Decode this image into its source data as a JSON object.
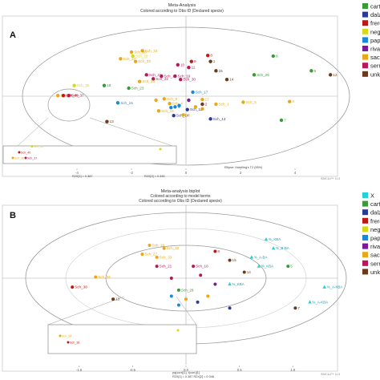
{
  "panel_a": {
    "letter": "A",
    "title": "Meta-Analysis",
    "subtitle": "Colored according to Obs ID (Declared specie)",
    "x_axis_text": "R2X[1] = 0.387",
    "y_axis_text": "R2X[2] = 0.346",
    "ellipse_note": "Ellipse: Hotelling's T2 (95%)",
    "watermark": "SIMCA-P+ 11.5"
  },
  "panel_b": {
    "letter": "B",
    "title": "Meta-analysis biplot",
    "subtitle1": "Colored according to model terms",
    "subtitle2": "Colored according to Obs ID (Declared specie)",
    "x_axis_text": "pq(corr)[1], t(corr)[1]",
    "axis_bottom": "R2X[1] = 0.387   R2X[2] = 0.346",
    "watermark": "SIMCA-P+ 11.5"
  },
  "legend_a": [
    {
      "label": "carte",
      "color": "#3a9a3a"
    },
    {
      "label": "dalzi",
      "color": "#2a3a9a"
    },
    {
      "label": "frere",
      "color": "#c01818"
    },
    {
      "label": "negle",
      "color": "#d8d818"
    },
    {
      "label": "papy",
      "color": "#1a8ad8"
    },
    {
      "label": "rivae",
      "color": "#7a1a9a"
    },
    {
      "label": "sacra",
      "color": "#e8a818"
    },
    {
      "label": "serra",
      "color": "#b81858"
    },
    {
      "label": "unk.",
      "color": "#6a3a1a"
    }
  ],
  "legend_b": [
    {
      "label": "X",
      "color": "#2ad0d8"
    },
    {
      "label": "carte",
      "color": "#3a9a3a"
    },
    {
      "label": "dalzi",
      "color": "#2a3a9a"
    },
    {
      "label": "frere",
      "color": "#c01818"
    },
    {
      "label": "negle",
      "color": "#d8d818"
    },
    {
      "label": "papy",
      "color": "#1a8ad8"
    },
    {
      "label": "rivae",
      "color": "#7a1a9a"
    },
    {
      "label": "sacra",
      "color": "#e8a818"
    },
    {
      "label": "serra",
      "color": "#b81858"
    },
    {
      "label": "unk.",
      "color": "#6a3a1a"
    }
  ],
  "chart_data": [
    {
      "type": "scatter",
      "title": "Meta-Analysis",
      "subtitle": "Colored according to Obs ID (Declared specie)",
      "xlabel": "R2X[1] = 0.387",
      "ylabel": "R2X[2] = 0.346",
      "x_ticks": [
        "-4",
        "-2",
        "0",
        "2",
        "4"
      ],
      "xlim": [
        -6,
        6
      ],
      "ylim": [
        -6,
        6
      ],
      "points": [
        {
          "label": "Sch_28",
          "x": -2.0,
          "y": 3.3,
          "c": "#e8a818"
        },
        {
          "label": "Sch_32",
          "x": -1.6,
          "y": 3.4,
          "c": "#e8a818"
        },
        {
          "label": "Sch_29",
          "x": -1.95,
          "y": 3.0,
          "c": "#d8d818"
        },
        {
          "label": "Sch_33",
          "x": -1.85,
          "y": 2.6,
          "c": "#e8a818"
        },
        {
          "label": "Sch_27",
          "x": -2.4,
          "y": 2.8,
          "c": "#e8a818"
        },
        {
          "label": "Sch_35",
          "x": -4.1,
          "y": 0.8,
          "c": "#d8d818"
        },
        {
          "label": "Sch_36",
          "x": -4.7,
          "y": 0.05,
          "c": "#e8a818"
        },
        {
          "label": "Sch_40",
          "x": -4.5,
          "y": 0.05,
          "c": "#c01818"
        },
        {
          "label": "Sch_37",
          "x": -4.3,
          "y": 0.05,
          "c": "#b81858"
        },
        {
          "label": "Sch_21",
          "x": -1.45,
          "y": 1.6,
          "c": "#b81858"
        },
        {
          "label": "Sch_22",
          "x": -1.2,
          "y": 1.3,
          "c": "#b81858"
        },
        {
          "label": "Sch_24",
          "x": -1.7,
          "y": 1.1,
          "c": "#e8a818"
        },
        {
          "label": "Sch_18",
          "x": -0.9,
          "y": 1.5,
          "c": "#b81858"
        },
        {
          "label": "Sch_19",
          "x": -0.4,
          "y": 1.5,
          "c": "#b81858"
        },
        {
          "label": "Sch_30",
          "x": -0.2,
          "y": 1.25,
          "c": "#b81858"
        },
        {
          "label": "Sch_23",
          "x": -2.1,
          "y": 0.6,
          "c": "#3a9a3a"
        },
        {
          "label": "Sch_17",
          "x": 0.25,
          "y": 0.3,
          "c": "#1a8ad8"
        },
        {
          "label": "Sch_16",
          "x": -2.5,
          "y": -0.5,
          "c": "#1a8ad8"
        },
        {
          "label": "Sch_8",
          "x": -0.8,
          "y": -0.2,
          "c": "#e8a818"
        },
        {
          "label": "Sch_4",
          "x": -0.6,
          "y": -0.55,
          "c": "#e8a818"
        },
        {
          "label": "Sch_12",
          "x": 0.05,
          "y": -1.0,
          "c": "#2a3a9a"
        },
        {
          "label": "Sch_1",
          "x": 1.1,
          "y": -0.6,
          "c": "#e8a818"
        },
        {
          "label": "Sch_5",
          "x": 2.1,
          "y": -0.45,
          "c": "#e8a818"
        },
        {
          "label": "Sch_13",
          "x": 0.9,
          "y": -1.7,
          "c": "#2a3a9a"
        },
        {
          "label": "Sch_14",
          "x": -0.45,
          "y": -1.45,
          "c": "#2a3a9a"
        },
        {
          "label": "Sch_26",
          "x": 2.5,
          "y": 1.6,
          "c": "#3a9a3a"
        },
        {
          "label": "Sch_15",
          "x": -1.0,
          "y": -1.1,
          "c": "#e8a818"
        },
        {
          "label": "5",
          "x": 4.6,
          "y": 1.9,
          "c": "#3a9a3a"
        },
        {
          "label": "8",
          "x": 0.8,
          "y": 3.05,
          "c": "#c01818"
        },
        {
          "label": "9",
          "x": 0.2,
          "y": 2.6,
          "c": "#c01818"
        },
        {
          "label": "10",
          "x": -0.3,
          "y": 2.35,
          "c": "#b81858"
        },
        {
          "label": "11",
          "x": 0.1,
          "y": 2.15,
          "c": "#b81858"
        },
        {
          "label": "12",
          "x": 5.3,
          "y": 1.6,
          "c": "#6a3a1a"
        },
        {
          "label": "13",
          "x": -2.9,
          "y": -1.9,
          "c": "#6a3a1a"
        },
        {
          "label": "14",
          "x": 1.5,
          "y": 1.25,
          "c": "#6a3a1a"
        },
        {
          "label": "15",
          "x": 1.1,
          "y": 1.9,
          "c": "#6a3a1a"
        },
        {
          "label": "16",
          "x": -0.1,
          "y": -1.4,
          "c": "#e8a818"
        },
        {
          "label": "17",
          "x": 0.6,
          "y": -0.25,
          "c": "#e8a818"
        },
        {
          "label": "18",
          "x": -3.0,
          "y": 0.8,
          "c": "#3a9a3a"
        },
        {
          "label": "7",
          "x": 3.5,
          "y": -1.8,
          "c": "#3a9a3a"
        },
        {
          "label": "6",
          "x": 3.2,
          "y": 3.0,
          "c": "#3a9a3a"
        },
        {
          "label": "3",
          "x": 3.8,
          "y": -0.4,
          "c": "#e8a818"
        },
        {
          "label": "1",
          "x": 0.9,
          "y": 2.6,
          "c": "#6a3a1a"
        },
        {
          "label": "2",
          "x": 0.6,
          "y": -0.6,
          "c": "#6a3a1a"
        },
        {
          "label": "4",
          "x": -0.4,
          "y": -0.8,
          "c": "#1a8ad8"
        },
        {
          "label": "",
          "x": 0.35,
          "y": -0.8,
          "c": "#e8a818"
        },
        {
          "label": "",
          "x": -0.55,
          "y": -0.85,
          "c": "#1a8ad8"
        },
        {
          "label": "",
          "x": -0.25,
          "y": -0.7,
          "c": "#1a8ad8"
        },
        {
          "label": "",
          "x": 0.6,
          "y": -0.95,
          "c": "#e8a818"
        },
        {
          "label": "",
          "x": -1.1,
          "y": -0.3,
          "c": "#e8a818"
        },
        {
          "label": "",
          "x": 0.1,
          "y": -0.3,
          "c": "#7a1a9a"
        }
      ]
    },
    {
      "type": "scatter",
      "title": "Meta-analysis biplot",
      "subtitle": "Colored according to model terms",
      "xlabel": "pq(corr)[1], t(corr)[1]",
      "x_ticks": [
        "-1.0",
        "-0.5",
        "0.0",
        "0.5",
        "1.0"
      ],
      "xlim": [
        -1.1,
        1.1
      ],
      "ylim": [
        -1.1,
        1.1
      ],
      "loadings": [
        {
          "label": "%_KBA",
          "x": 0.55,
          "y": 0.65
        },
        {
          "label": "%_B-BA",
          "x": 0.6,
          "y": 0.5
        },
        {
          "label": "%_A-BA",
          "x": 0.45,
          "y": 0.35
        },
        {
          "label": "%_KBA",
          "x": 0.5,
          "y": 0.2
        },
        {
          "label": "%_A-KBA",
          "x": 0.95,
          "y": -0.15
        },
        {
          "label": "%_KBA",
          "x": 0.3,
          "y": -0.1
        },
        {
          "label": "%_A-KBA",
          "x": 0.85,
          "y": -0.4
        }
      ],
      "points": [
        {
          "label": "Sch_28",
          "x": -0.25,
          "y": 0.55,
          "c": "#e8a818"
        },
        {
          "label": "Sch_32",
          "x": -0.15,
          "y": 0.5,
          "c": "#e8a818"
        },
        {
          "label": "Sch_27",
          "x": -0.3,
          "y": 0.4,
          "c": "#e8a818"
        },
        {
          "label": "Sch_33",
          "x": -0.2,
          "y": 0.35,
          "c": "#e8a818"
        },
        {
          "label": "Sch_34",
          "x": -0.62,
          "y": 0.02,
          "c": "#e8a818"
        },
        {
          "label": "Sch_38",
          "x": -0.78,
          "y": -0.15,
          "c": "#c01818"
        },
        {
          "label": "Sch_21",
          "x": -0.2,
          "y": 0.2,
          "c": "#b81858"
        },
        {
          "label": "Sch_29",
          "x": -0.05,
          "y": -0.2,
          "c": "#3a9a3a"
        },
        {
          "label": "Sch_18",
          "x": 0.05,
          "y": 0.2,
          "c": "#b81858"
        },
        {
          "label": "13",
          "x": -0.5,
          "y": -0.35,
          "c": "#6a3a1a"
        },
        {
          "label": "14",
          "x": 0.4,
          "y": 0.1,
          "c": "#6a3a1a"
        },
        {
          "label": "15",
          "x": 0.3,
          "y": 0.3,
          "c": "#6a3a1a"
        },
        {
          "label": "5",
          "x": 0.7,
          "y": 0.2,
          "c": "#3a9a3a"
        },
        {
          "label": "7",
          "x": 0.75,
          "y": -0.5,
          "c": "#6a3a1a"
        },
        {
          "label": "8",
          "x": 0.2,
          "y": 0.45,
          "c": "#c01818"
        },
        {
          "label": "",
          "x": 0.0,
          "y": -0.35,
          "c": "#e8a818"
        },
        {
          "label": "",
          "x": 0.08,
          "y": -0.4,
          "c": "#2a3a9a"
        },
        {
          "label": "",
          "x": -0.1,
          "y": -0.3,
          "c": "#1a8ad8"
        },
        {
          "label": "",
          "x": 0.15,
          "y": -0.3,
          "c": "#e8a818"
        },
        {
          "label": "",
          "x": -0.05,
          "y": -0.45,
          "c": "#1a8ad8"
        },
        {
          "label": "",
          "x": 0.3,
          "y": -0.5,
          "c": "#2a3a9a"
        },
        {
          "label": "",
          "x": 0.1,
          "y": 0.05,
          "c": "#b81858"
        },
        {
          "label": "",
          "x": -0.1,
          "y": 0.0,
          "c": "#b81858"
        },
        {
          "label": "",
          "x": 0.2,
          "y": -0.1,
          "c": "#7a1a9a"
        }
      ]
    }
  ]
}
